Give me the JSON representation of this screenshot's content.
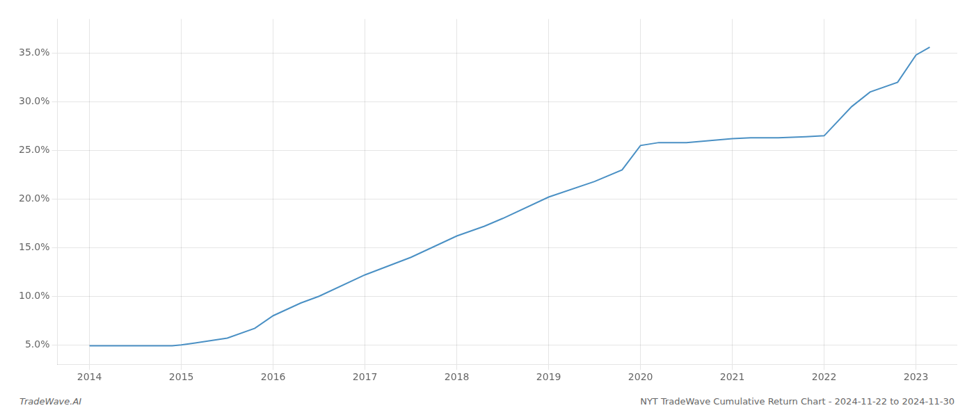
{
  "chart_data": {
    "type": "line",
    "x": [
      2014.0,
      2014.5,
      2014.9,
      2015.0,
      2015.15,
      2015.5,
      2015.8,
      2016.0,
      2016.3,
      2016.5,
      2017.0,
      2017.5,
      2018.0,
      2018.3,
      2018.5,
      2019.0,
      2019.5,
      2019.8,
      2020.0,
      2020.2,
      2020.5,
      2021.0,
      2021.2,
      2021.5,
      2021.8,
      2022.0,
      2022.3,
      2022.5,
      2022.8,
      2023.0,
      2023.15
    ],
    "values": [
      0.049,
      0.049,
      0.049,
      0.05,
      0.052,
      0.057,
      0.067,
      0.08,
      0.093,
      0.1,
      0.122,
      0.14,
      0.162,
      0.172,
      0.18,
      0.202,
      0.218,
      0.23,
      0.255,
      0.258,
      0.258,
      0.262,
      0.263,
      0.263,
      0.264,
      0.265,
      0.295,
      0.31,
      0.32,
      0.348,
      0.356
    ],
    "color": "#4a90c4",
    "xlim": [
      2013.65,
      2023.45
    ],
    "xticks": [
      2014,
      2015,
      2016,
      2017,
      2018,
      2019,
      2020,
      2021,
      2022,
      2023
    ],
    "ylim": [
      0.03,
      0.385
    ],
    "yticks": [
      {
        "value": 0.05,
        "label": "5.0%"
      },
      {
        "value": 0.1,
        "label": "10.0%"
      },
      {
        "value": 0.15,
        "label": "15.0%"
      },
      {
        "value": 0.2,
        "label": "20.0%"
      },
      {
        "value": 0.25,
        "label": "25.0%"
      },
      {
        "value": 0.3,
        "label": "30.0%"
      },
      {
        "value": 0.35,
        "label": "35.0%"
      }
    ],
    "grid": true,
    "annotations": [
      "TradeWave.AI",
      "NYT TradeWave Cumulative Return Chart - 2024-11-22 to 2024-11-30"
    ]
  }
}
